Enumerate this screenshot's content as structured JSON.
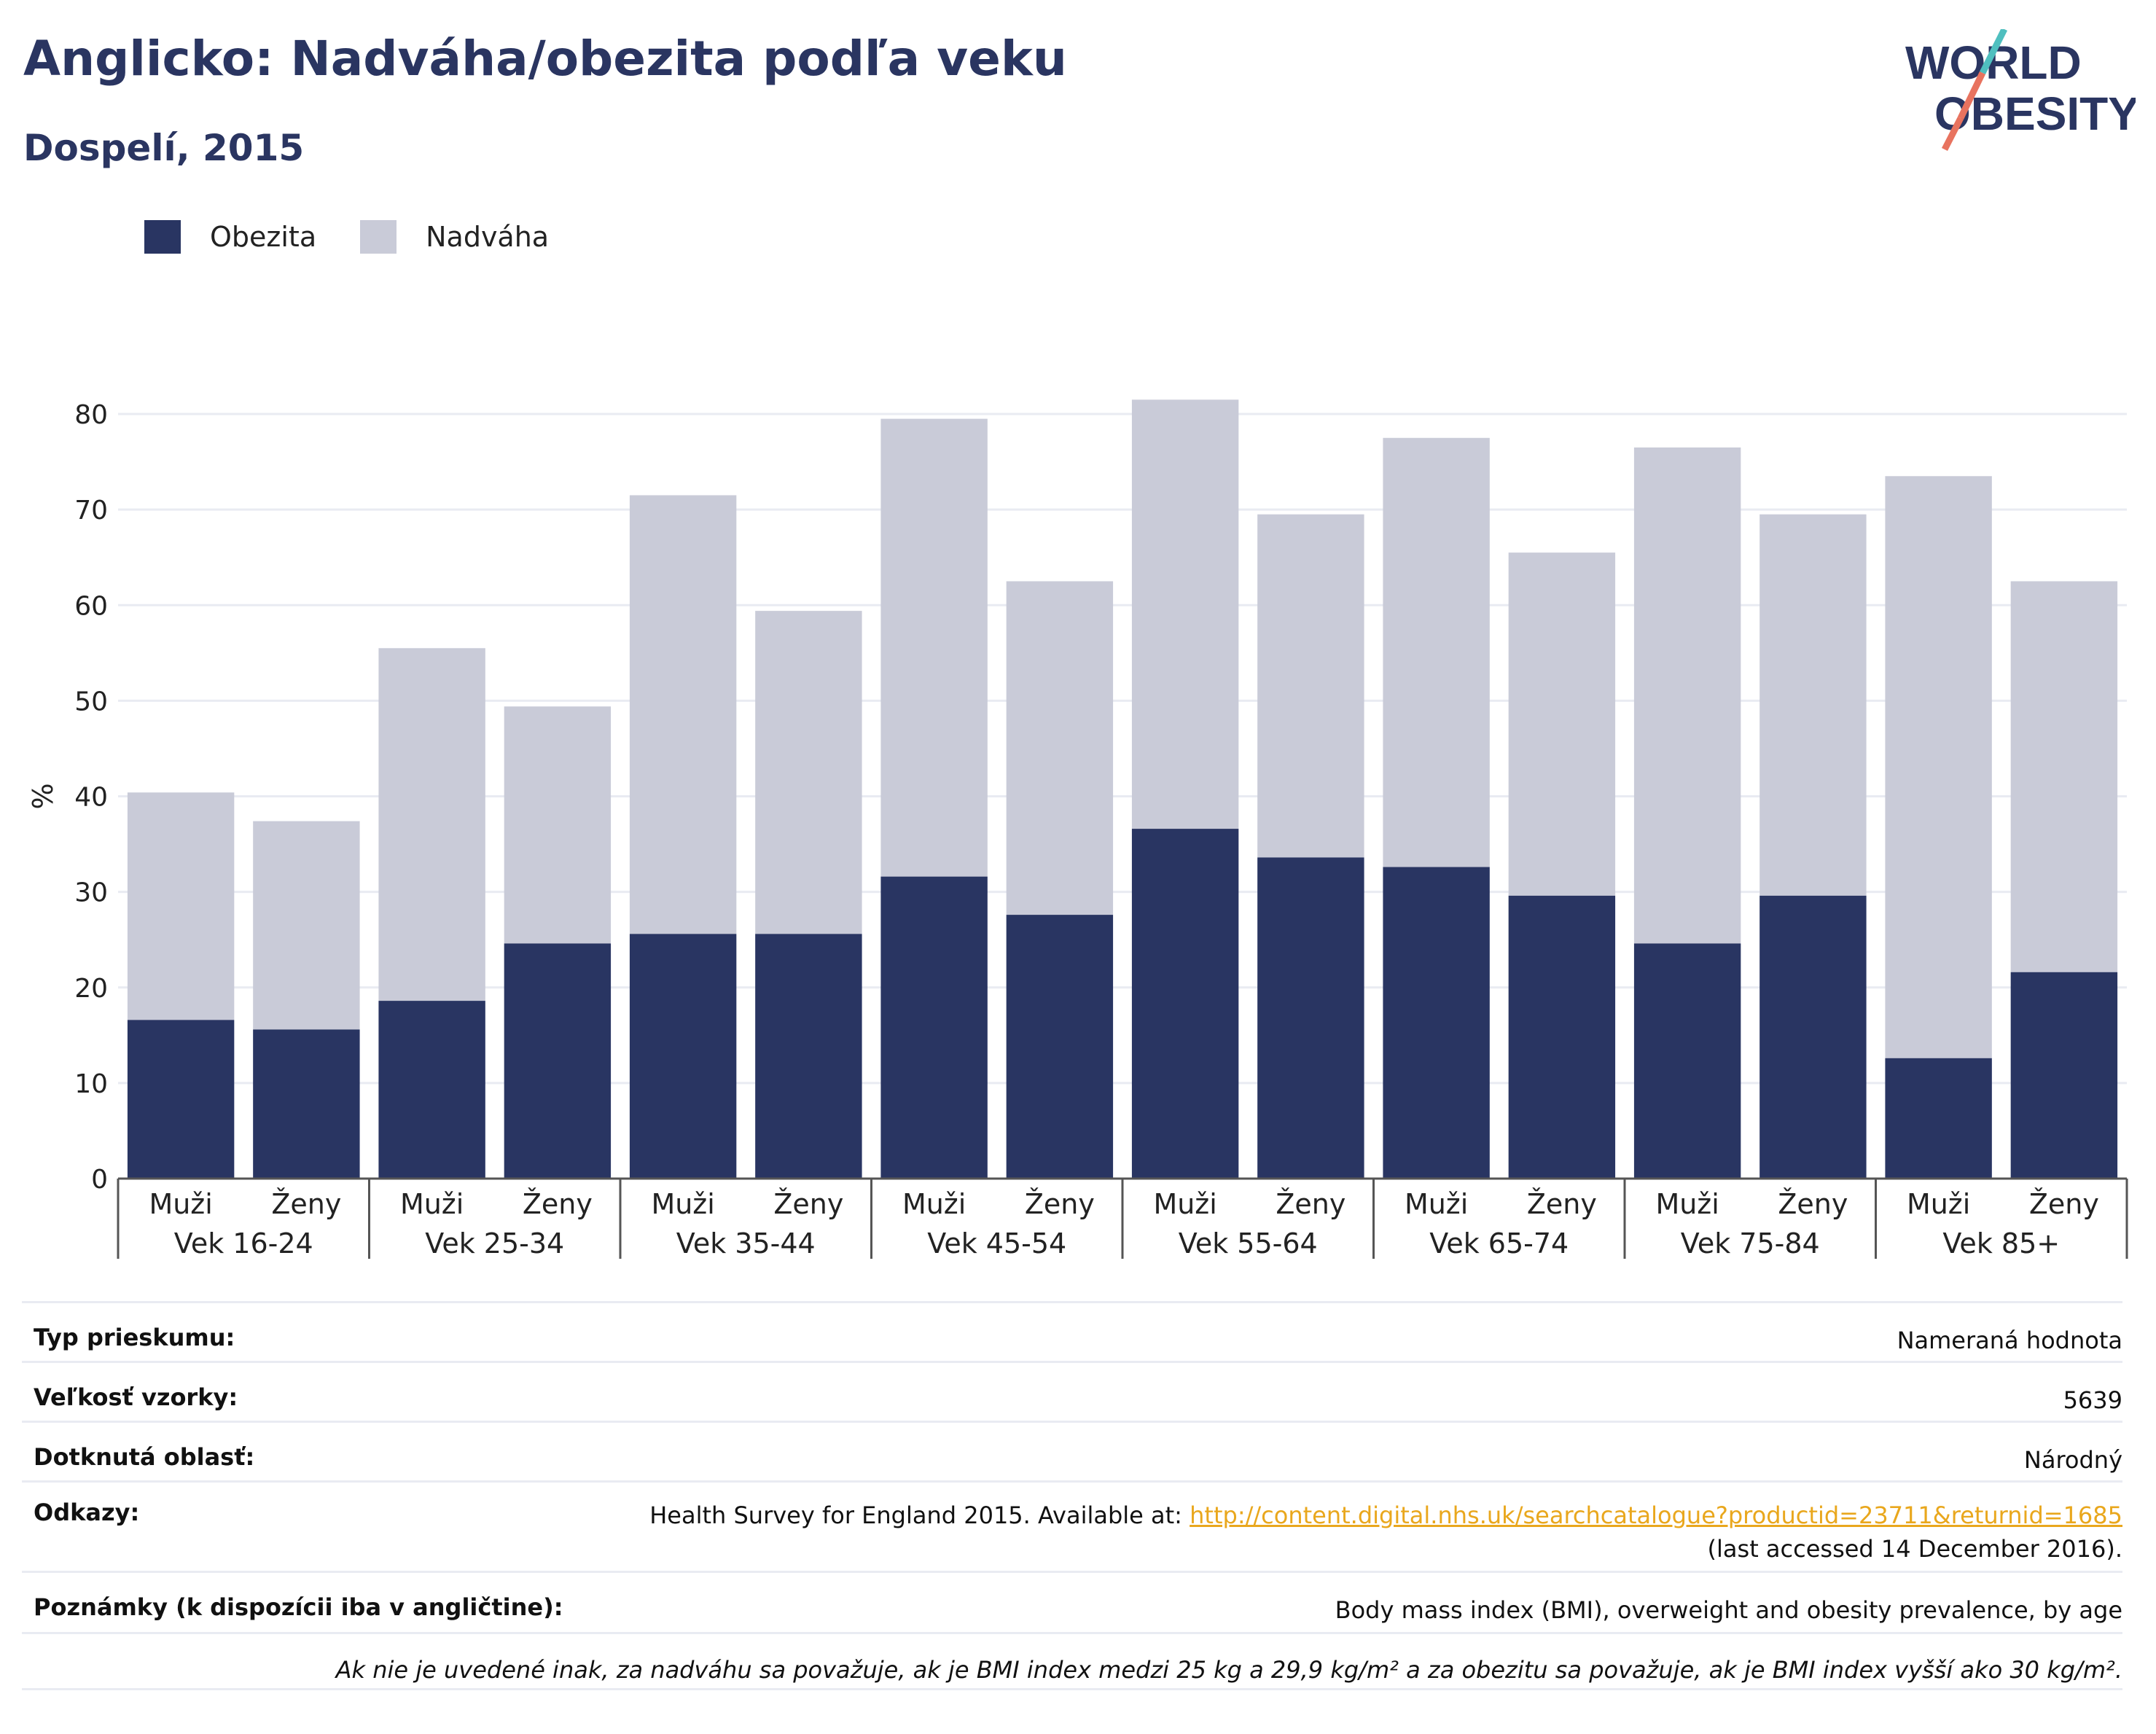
{
  "header": {
    "title": "Anglicko: Nadváha/obezita podľa veku",
    "subtitle": "Dospelí, 2015"
  },
  "logo": {
    "line1": "WORLD",
    "line2": "OBESITY",
    "colors": [
      "#2a3561",
      "#4fbfbf",
      "#e8735f"
    ]
  },
  "legend": [
    {
      "label": "Obezita",
      "color": "#293562"
    },
    {
      "label": "Nadváha",
      "color": "#c9cbd8"
    }
  ],
  "chart_data": {
    "type": "bar",
    "stacked": true,
    "ylabel": "%",
    "ylim": [
      0,
      80
    ],
    "yticks": [
      0,
      10,
      20,
      30,
      40,
      50,
      60,
      70,
      80
    ],
    "grid": true,
    "legend_position": "top-left",
    "groups": [
      "Vek 16-24",
      "Vek 25-34",
      "Vek 35-44",
      "Vek 45-54",
      "Vek 55-64",
      "Vek 65-74",
      "Vek 75-84",
      "Vek 85+"
    ],
    "categories": [
      "Muži",
      "Ženy"
    ],
    "bars": [
      {
        "group": "Vek 16-24",
        "category": "Muži",
        "obezita": 16.6,
        "nadvaha": 23.8
      },
      {
        "group": "Vek 16-24",
        "category": "Ženy",
        "obezita": 15.6,
        "nadvaha": 21.8
      },
      {
        "group": "Vek 25-34",
        "category": "Muži",
        "obezita": 18.6,
        "nadvaha": 36.9
      },
      {
        "group": "Vek 25-34",
        "category": "Ženy",
        "obezita": 24.6,
        "nadvaha": 24.8
      },
      {
        "group": "Vek 35-44",
        "category": "Muži",
        "obezita": 25.6,
        "nadvaha": 45.9
      },
      {
        "group": "Vek 35-44",
        "category": "Ženy",
        "obezita": 25.6,
        "nadvaha": 33.8
      },
      {
        "group": "Vek 45-54",
        "category": "Muži",
        "obezita": 31.6,
        "nadvaha": 47.9
      },
      {
        "group": "Vek 45-54",
        "category": "Ženy",
        "obezita": 27.6,
        "nadvaha": 34.9
      },
      {
        "group": "Vek 55-64",
        "category": "Muži",
        "obezita": 36.6,
        "nadvaha": 44.9
      },
      {
        "group": "Vek 55-64",
        "category": "Ženy",
        "obezita": 33.6,
        "nadvaha": 35.9
      },
      {
        "group": "Vek 65-74",
        "category": "Muži",
        "obezita": 32.6,
        "nadvaha": 44.9
      },
      {
        "group": "Vek 65-74",
        "category": "Ženy",
        "obezita": 29.6,
        "nadvaha": 35.9
      },
      {
        "group": "Vek 75-84",
        "category": "Muži",
        "obezita": 24.6,
        "nadvaha": 51.9
      },
      {
        "group": "Vek 75-84",
        "category": "Ženy",
        "obezita": 29.6,
        "nadvaha": 39.9
      },
      {
        "group": "Vek 85+",
        "category": "Muži",
        "obezita": 12.6,
        "nadvaha": 60.9
      },
      {
        "group": "Vek 85+",
        "category": "Ženy",
        "obezita": 21.6,
        "nadvaha": 40.9
      }
    ]
  },
  "info": {
    "rows": [
      {
        "label": "Typ prieskumu:",
        "value": "Nameraná hodnota"
      },
      {
        "label": "Veľkosť vzorky:",
        "value": "5639"
      },
      {
        "label": "Dotknutá oblasť:",
        "value": "Národný"
      }
    ],
    "references": {
      "label": "Odkazy:",
      "prefix": "Health Survey for England 2015. Available at: ",
      "link": "http://content.digital.nhs.uk/searchcatalogue?productid=23711&returnid=1685",
      "suffix": " (last accessed 14 December 2016)."
    },
    "notes": {
      "label": "Poznámky (k dispozícii iba v angličtine):",
      "value": "Body mass index (BMI), overweight and obesity prevalence, by age"
    },
    "footnote": "Ak nie je uvedené inak, za nadváhu sa považuje, ak je BMI index medzi 25 kg a 29,9 kg/m² a za obezitu sa považuje, ak je BMI index vyšší ako 30 kg/m²."
  }
}
